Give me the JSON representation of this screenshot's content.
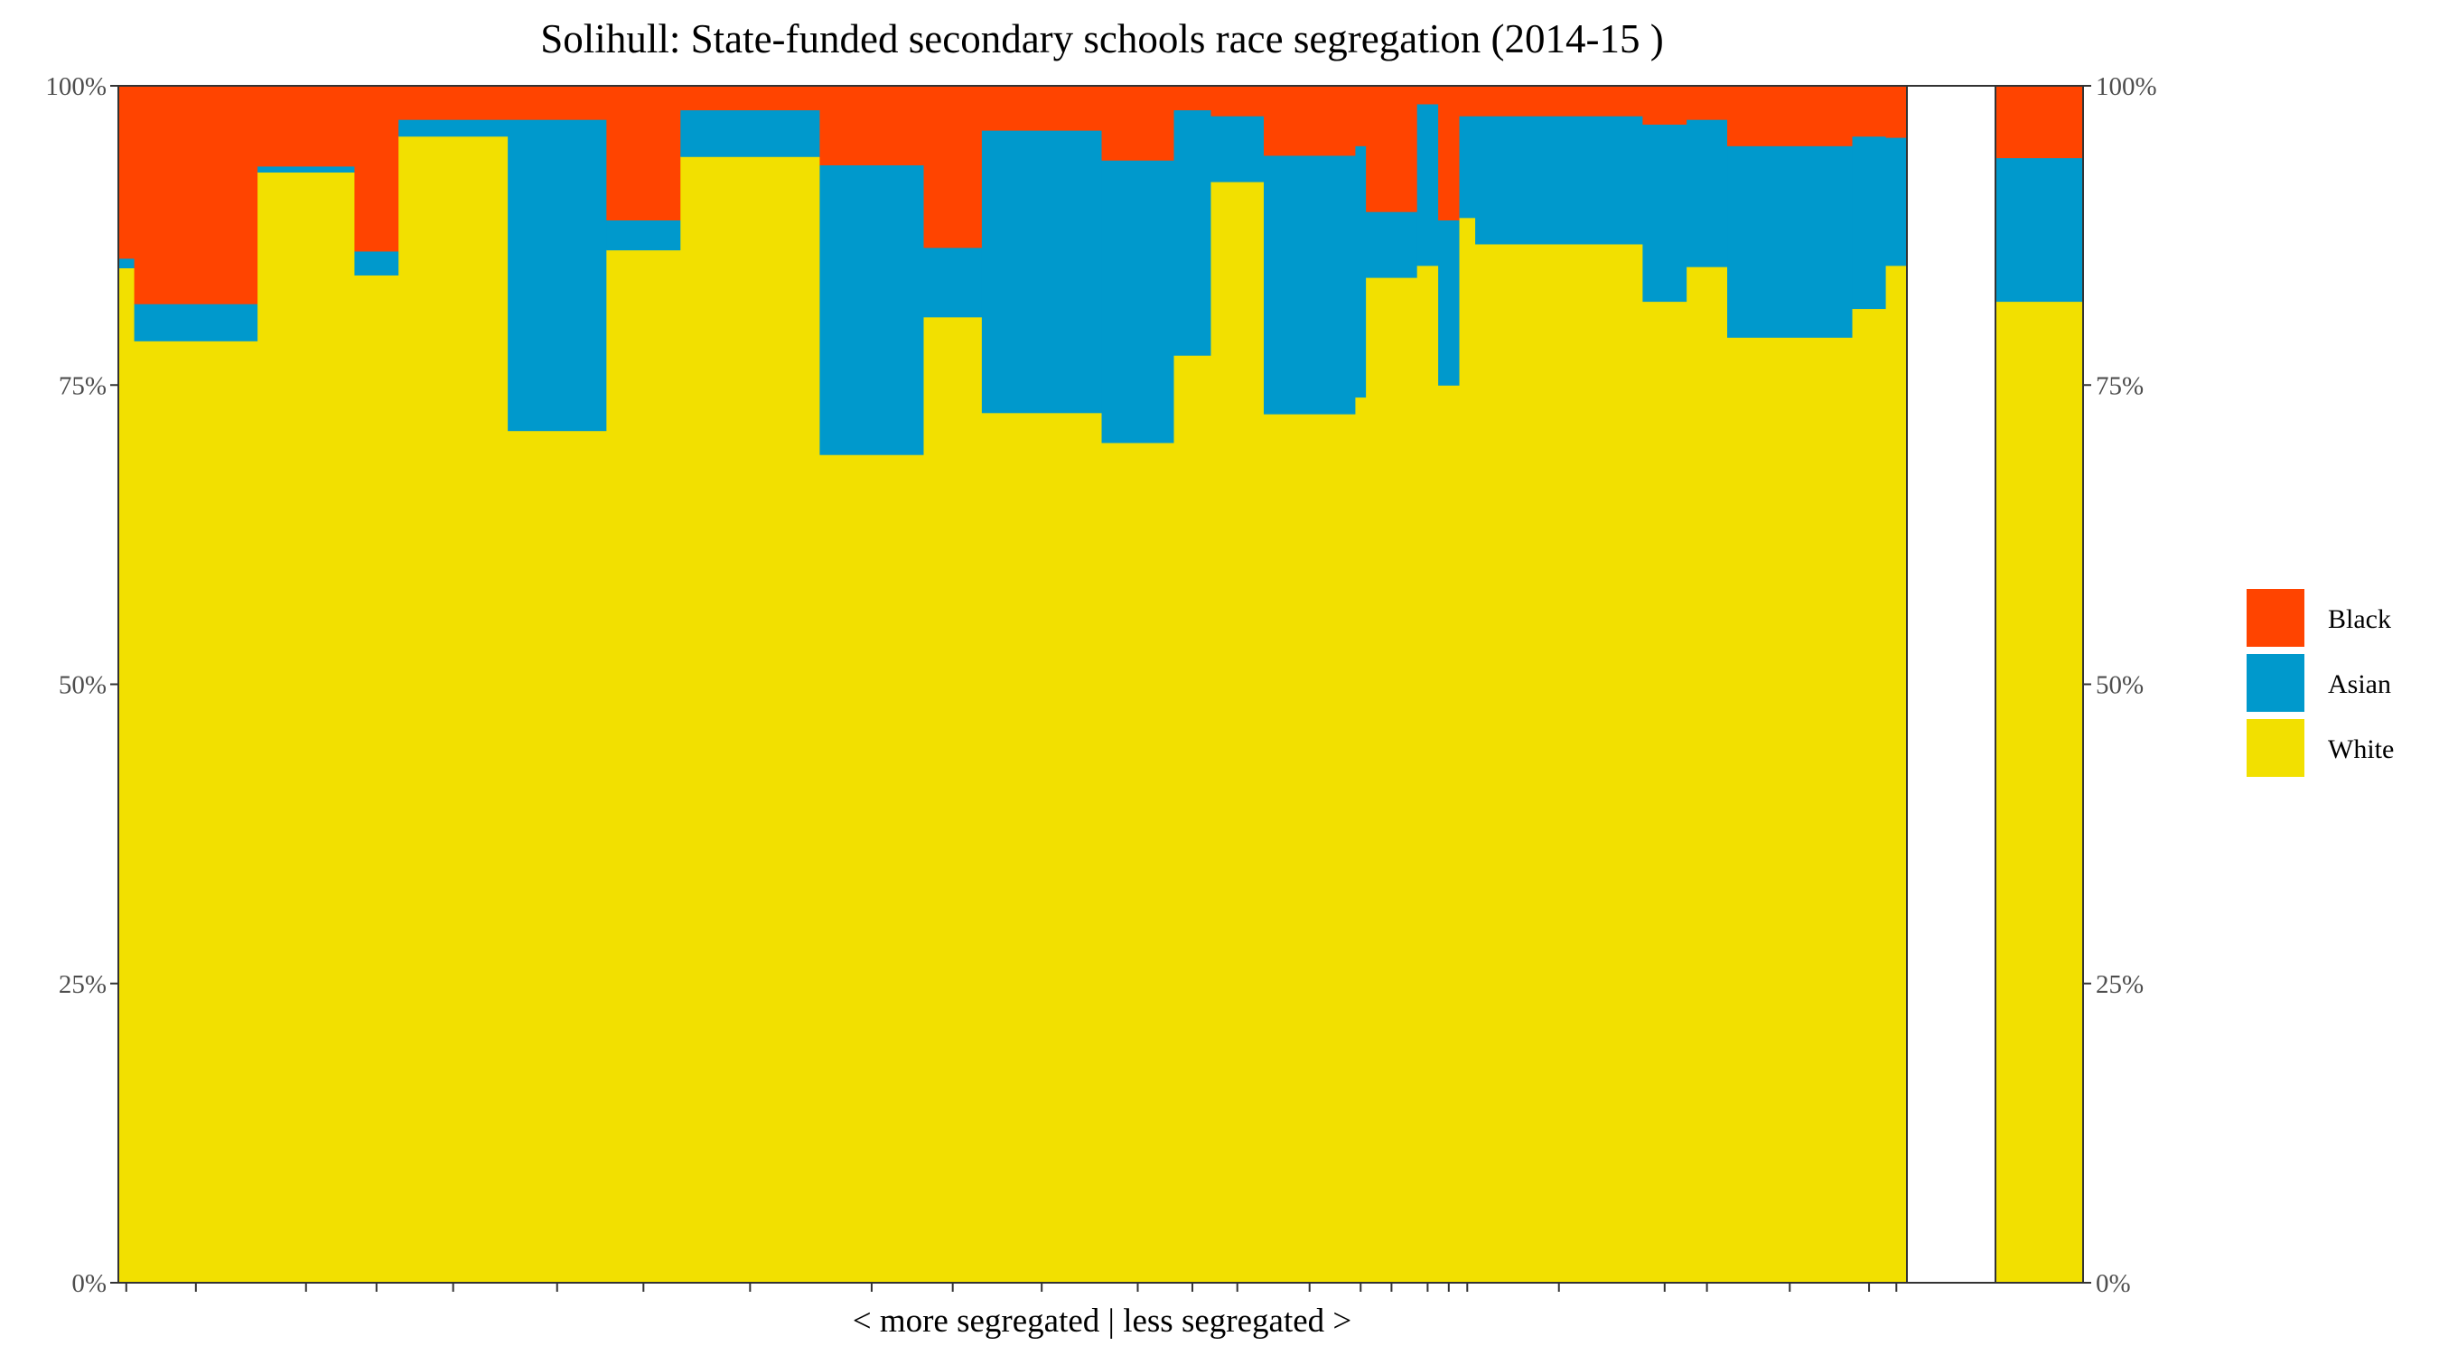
{
  "chart_data": {
    "type": "bar",
    "subtype": "stacked-variable-width",
    "title": "Solihull: State-funded secondary schools race segregation (2014-15 )",
    "xlabel": "< more segregated | less segregated >",
    "ylabel": "",
    "ylim": [
      0,
      100
    ],
    "yticks": [
      "0%",
      "25%",
      "50%",
      "75%",
      "100%"
    ],
    "yticks_values": [
      0,
      25,
      50,
      75,
      100
    ],
    "colors": {
      "White": "#f2e000",
      "Asian": "#0099cc",
      "Black": "#ff4400"
    },
    "legend": {
      "position": "right",
      "entries": [
        "Black",
        "Asian",
        "White"
      ]
    },
    "series_order": [
      "White",
      "Asian",
      "Black"
    ],
    "schools": [
      {
        "share": 0.9,
        "White": 84.8,
        "Asian": 0.8,
        "Black": 14.4
      },
      {
        "share": 7.0,
        "White": 78.7,
        "Asian": 3.1,
        "Black": 18.2
      },
      {
        "share": 5.5,
        "White": 92.8,
        "Asian": 0.5,
        "Black": 6.7
      },
      {
        "share": 2.5,
        "White": 84.2,
        "Asian": 2.0,
        "Black": 13.8
      },
      {
        "share": 6.2,
        "White": 95.8,
        "Asian": 1.4,
        "Black": 2.8
      },
      {
        "share": 5.6,
        "White": 71.2,
        "Asian": 26.0,
        "Black": 2.8
      },
      {
        "share": 4.2,
        "White": 86.3,
        "Asian": 2.5,
        "Black": 11.2
      },
      {
        "share": 7.9,
        "White": 94.1,
        "Asian": 3.9,
        "Black": 2.0
      },
      {
        "share": 5.9,
        "White": 69.2,
        "Asian": 24.2,
        "Black": 6.6
      },
      {
        "share": 3.3,
        "White": 80.7,
        "Asian": 5.8,
        "Black": 13.5
      },
      {
        "share": 6.8,
        "White": 72.7,
        "Asian": 23.6,
        "Black": 3.7
      },
      {
        "share": 4.1,
        "White": 70.2,
        "Asian": 23.6,
        "Black": 6.2
      },
      {
        "share": 2.1,
        "White": 77.5,
        "Asian": 20.5,
        "Black": 2.0
      },
      {
        "share": 3.0,
        "White": 92.0,
        "Asian": 5.5,
        "Black": 2.5
      },
      {
        "share": 5.2,
        "White": 72.6,
        "Asian": 21.6,
        "Black": 5.8
      },
      {
        "share": 0.6,
        "White": 74.0,
        "Asian": 21.0,
        "Black": 5.0
      },
      {
        "share": 2.9,
        "White": 84.0,
        "Asian": 5.5,
        "Black": 10.5
      },
      {
        "share": 1.2,
        "White": 85.0,
        "Asian": 13.5,
        "Black": 1.5
      },
      {
        "share": 1.2,
        "White": 75.0,
        "Asian": 13.8,
        "Black": 11.2
      },
      {
        "share": 0.9,
        "White": 89.0,
        "Asian": 8.5,
        "Black": 2.5
      },
      {
        "share": 9.5,
        "White": 86.8,
        "Asian": 10.7,
        "Black": 2.5
      },
      {
        "share": 2.5,
        "White": 82.0,
        "Asian": 14.8,
        "Black": 3.2
      },
      {
        "share": 2.3,
        "White": 84.9,
        "Asian": 12.3,
        "Black": 2.8
      },
      {
        "share": 7.1,
        "White": 79.0,
        "Asian": 16.0,
        "Black": 5.0
      },
      {
        "share": 1.9,
        "White": 81.4,
        "Asian": 14.4,
        "Black": 4.2
      },
      {
        "share": 1.2,
        "White": 85.0,
        "Asian": 10.7,
        "Black": 4.3
      }
    ],
    "overall": {
      "White": 82.0,
      "Asian": 12.0,
      "Black": 6.0
    }
  }
}
